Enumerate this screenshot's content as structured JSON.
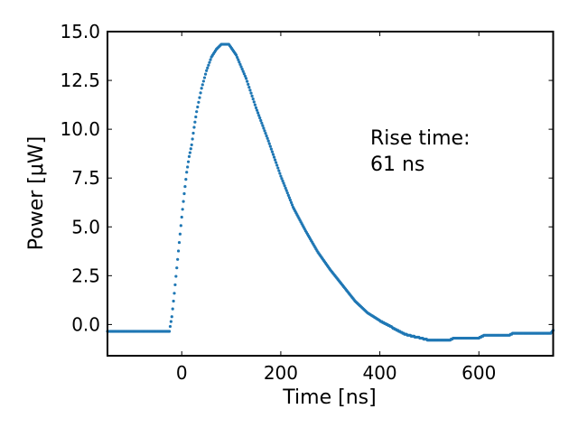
{
  "chart_data": {
    "type": "scatter",
    "title": "",
    "xlabel": "Time [ns]",
    "ylabel": "Power [μW]",
    "xlim": [
      -150,
      750
    ],
    "ylim": [
      -1.6,
      15.0
    ],
    "xticks": [
      0,
      200,
      400,
      600
    ],
    "xtick_labels": [
      "0",
      "200",
      "400",
      "600"
    ],
    "yticks": [
      0.0,
      2.5,
      5.0,
      7.5,
      10.0,
      12.5,
      15.0
    ],
    "ytick_labels": [
      "0.0",
      "2.5",
      "5.0",
      "7.5",
      "10.0",
      "12.5",
      "15.0"
    ],
    "grid": false,
    "color": "#1f77b4",
    "annotation": [
      "Rise time:",
      "61 ns"
    ],
    "x": [
      -150,
      -100,
      -50,
      -25,
      -20,
      -15,
      -10,
      -5,
      0,
      5,
      10,
      15,
      20,
      25,
      30,
      40,
      50,
      60,
      70,
      80,
      95,
      110,
      130,
      150,
      175,
      200,
      225,
      250,
      275,
      300,
      325,
      350,
      375,
      400,
      425,
      450,
      475,
      500,
      540,
      550,
      600,
      610,
      660,
      670,
      745,
      750
    ],
    "y": [
      -0.35,
      -0.35,
      -0.35,
      -0.35,
      0.4,
      1.6,
      2.9,
      4.2,
      5.5,
      6.7,
      7.8,
      8.6,
      9.2,
      10.1,
      10.9,
      12.1,
      13.0,
      13.7,
      14.1,
      14.35,
      14.35,
      13.8,
      12.6,
      11.1,
      9.4,
      7.6,
      6.0,
      4.8,
      3.7,
      2.8,
      2.0,
      1.2,
      0.6,
      0.2,
      -0.15,
      -0.5,
      -0.65,
      -0.8,
      -0.8,
      -0.7,
      -0.7,
      -0.55,
      -0.55,
      -0.45,
      -0.45,
      -0.3
    ]
  }
}
